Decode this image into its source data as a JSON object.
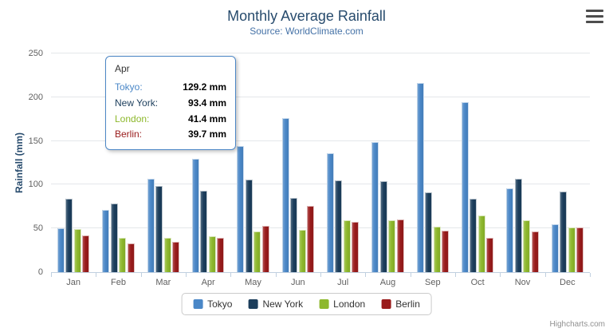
{
  "title": "Monthly Average Rainfall",
  "subtitle": "Source: WorldClimate.com",
  "credits": "Highcharts.com",
  "icons": {
    "context_menu": "hamburger-menu-icon"
  },
  "chart_data": {
    "type": "bar",
    "orientation": "vertical",
    "title": "Monthly Average Rainfall",
    "subtitle": "Source: WorldClimate.com",
    "xlabel": "",
    "ylabel": "Rainfall (mm)",
    "ylim": [
      0,
      250
    ],
    "yticks": [
      0,
      50,
      100,
      150,
      200,
      250
    ],
    "grid": true,
    "legend_position": "bottom",
    "categories": [
      "Jan",
      "Feb",
      "Mar",
      "Apr",
      "May",
      "Jun",
      "Jul",
      "Aug",
      "Sep",
      "Oct",
      "Nov",
      "Dec"
    ],
    "series": [
      {
        "name": "Tokyo",
        "color": "#4a87c7",
        "values": [
          49.9,
          71.5,
          106.4,
          129.2,
          144.0,
          176.0,
          135.6,
          148.5,
          216.4,
          194.1,
          95.6,
          54.4
        ]
      },
      {
        "name": "New York",
        "color": "#1c3e5c",
        "values": [
          83.6,
          78.8,
          98.5,
          93.4,
          106.0,
          84.5,
          105.0,
          104.3,
          91.2,
          83.5,
          106.6,
          92.3
        ]
      },
      {
        "name": "London",
        "color": "#8db82c",
        "values": [
          48.9,
          38.8,
          39.3,
          41.4,
          47.0,
          48.3,
          59.0,
          59.6,
          52.4,
          65.2,
          59.3,
          51.2
        ]
      },
      {
        "name": "Berlin",
        "color": "#991b1b",
        "values": [
          42.4,
          33.2,
          34.5,
          39.7,
          52.6,
          75.5,
          57.4,
          60.4,
          47.6,
          39.1,
          46.8,
          51.1
        ]
      }
    ]
  },
  "tooltip": {
    "header": "Apr",
    "rows": [
      {
        "label": "Tokyo:",
        "value": "129.2 mm",
        "color": "#4a87c7"
      },
      {
        "label": "New York:",
        "value": "93.4 mm",
        "color": "#1c3e5c"
      },
      {
        "label": "London:",
        "value": "41.4 mm",
        "color": "#8db82c"
      },
      {
        "label": "Berlin:",
        "value": "39.7 mm",
        "color": "#991b1b"
      }
    ]
  }
}
